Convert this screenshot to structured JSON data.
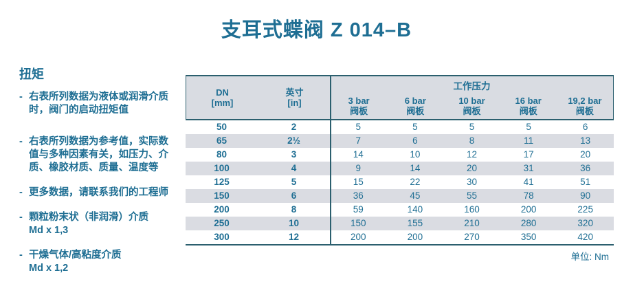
{
  "title": "支耳式蝶阀 Z 014–B",
  "notes": {
    "heading": "扭矩",
    "bullet": "-",
    "items": [
      "右表所列数据为液体或润滑介质\n时，阀门的启动扭矩值",
      "右表所列数据为参考值，实际数\n值与多种因素有关，如压力、介\n质、橡胶材质、质量、温度等",
      "更多数据，请联系我们的工程师",
      "颗粒粉末状（非润滑）介质\nMd x 1,3",
      "干燥气体/高粘度介质\nMd x 1,2"
    ]
  },
  "table": {
    "dn_header": "DN\n[mm]",
    "inch_header": "英寸\n[in]",
    "pressure_group_header": "工作压力",
    "pressure_columns": [
      "3 bar\n阀板",
      "6 bar\n阀板",
      "10 bar\n阀板",
      "16 bar\n阀板",
      "19,2 bar\n阀板"
    ],
    "rows": [
      [
        "50",
        "2",
        "5",
        "5",
        "5",
        "5",
        "6"
      ],
      [
        "65",
        "2½",
        "7",
        "6",
        "8",
        "11",
        "13"
      ],
      [
        "80",
        "3",
        "14",
        "10",
        "12",
        "17",
        "20"
      ],
      [
        "100",
        "4",
        "9",
        "14",
        "20",
        "31",
        "36"
      ],
      [
        "125",
        "5",
        "15",
        "22",
        "30",
        "41",
        "51"
      ],
      [
        "150",
        "6",
        "36",
        "45",
        "55",
        "78",
        "90"
      ],
      [
        "200",
        "8",
        "59",
        "140",
        "160",
        "200",
        "225"
      ],
      [
        "250",
        "10",
        "150",
        "155",
        "210",
        "280",
        "320"
      ],
      [
        "300",
        "12",
        "200",
        "200",
        "270",
        "350",
        "420"
      ]
    ],
    "unit_note": "单位: Nm"
  },
  "colors": {
    "accent_text": "#1e6e93",
    "line": "#2b5f6e",
    "header_bg": "#d9dce2",
    "stripe_bg": "#dadce2",
    "page_bg": "#ffffff"
  }
}
